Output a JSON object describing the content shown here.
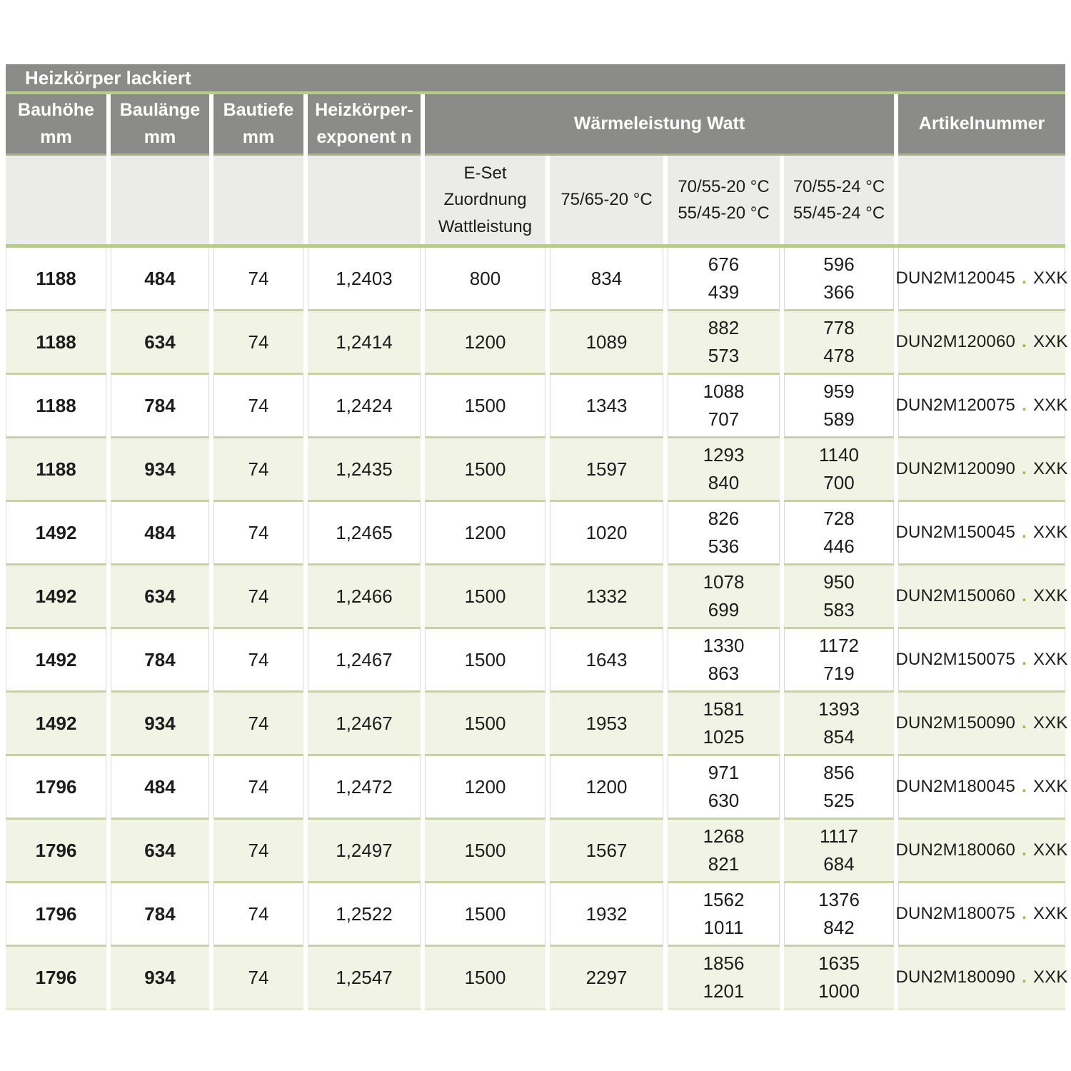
{
  "title": "Heizkörper lackiert",
  "header": {
    "bauhoehe": [
      "Bauhöhe",
      "mm"
    ],
    "baulaenge": [
      "Baulänge",
      "mm"
    ],
    "bautiefe": [
      "Bautiefe",
      "mm"
    ],
    "exponent": [
      "Heizkörper-",
      "exponent n"
    ],
    "waermeleistung": "Wärmeleistung Watt",
    "artikelnummer": "Artikelnummer"
  },
  "subheader": {
    "eset": [
      "E-Set",
      "Zuordnung",
      "Wattleistung"
    ],
    "t75_65": "75/65-20 °C",
    "t70_55_20": [
      "70/55-20 °C",
      "55/45-20 °C"
    ],
    "t70_55_24": [
      "70/55-24 °C",
      "55/45-24 °C"
    ]
  },
  "artikel_dot": ".",
  "artikel_suffix": "XXK",
  "colors": {
    "header_gray": "#8b8b89",
    "subheader_gray": "#ebebe9",
    "row_green": "#f1f4e4",
    "accent_green": "#b7cd8e",
    "separator_olive": "#c7d2a4",
    "artikel_dot_green": "#8ebf3e"
  },
  "rows": [
    {
      "bauhoehe": "1188",
      "baulaenge": "484",
      "bautiefe": "74",
      "exponent": "1,2403",
      "eset": "800",
      "w75_65": "834",
      "w70_55_20": [
        "676",
        "439"
      ],
      "w70_55_24": [
        "596",
        "366"
      ],
      "artikel": "DUN2M120045"
    },
    {
      "bauhoehe": "1188",
      "baulaenge": "634",
      "bautiefe": "74",
      "exponent": "1,2414",
      "eset": "1200",
      "w75_65": "1089",
      "w70_55_20": [
        "882",
        "573"
      ],
      "w70_55_24": [
        "778",
        "478"
      ],
      "artikel": "DUN2M120060"
    },
    {
      "bauhoehe": "1188",
      "baulaenge": "784",
      "bautiefe": "74",
      "exponent": "1,2424",
      "eset": "1500",
      "w75_65": "1343",
      "w70_55_20": [
        "1088",
        "707"
      ],
      "w70_55_24": [
        "959",
        "589"
      ],
      "artikel": "DUN2M120075"
    },
    {
      "bauhoehe": "1188",
      "baulaenge": "934",
      "bautiefe": "74",
      "exponent": "1,2435",
      "eset": "1500",
      "w75_65": "1597",
      "w70_55_20": [
        "1293",
        "840"
      ],
      "w70_55_24": [
        "1140",
        "700"
      ],
      "artikel": "DUN2M120090"
    },
    {
      "bauhoehe": "1492",
      "baulaenge": "484",
      "bautiefe": "74",
      "exponent": "1,2465",
      "eset": "1200",
      "w75_65": "1020",
      "w70_55_20": [
        "826",
        "536"
      ],
      "w70_55_24": [
        "728",
        "446"
      ],
      "artikel": "DUN2M150045"
    },
    {
      "bauhoehe": "1492",
      "baulaenge": "634",
      "bautiefe": "74",
      "exponent": "1,2466",
      "eset": "1500",
      "w75_65": "1332",
      "w70_55_20": [
        "1078",
        "699"
      ],
      "w70_55_24": [
        "950",
        "583"
      ],
      "artikel": "DUN2M150060"
    },
    {
      "bauhoehe": "1492",
      "baulaenge": "784",
      "bautiefe": "74",
      "exponent": "1,2467",
      "eset": "1500",
      "w75_65": "1643",
      "w70_55_20": [
        "1330",
        "863"
      ],
      "w70_55_24": [
        "1172",
        "719"
      ],
      "artikel": "DUN2M150075"
    },
    {
      "bauhoehe": "1492",
      "baulaenge": "934",
      "bautiefe": "74",
      "exponent": "1,2467",
      "eset": "1500",
      "w75_65": "1953",
      "w70_55_20": [
        "1581",
        "1025"
      ],
      "w70_55_24": [
        "1393",
        "854"
      ],
      "artikel": "DUN2M150090"
    },
    {
      "bauhoehe": "1796",
      "baulaenge": "484",
      "bautiefe": "74",
      "exponent": "1,2472",
      "eset": "1200",
      "w75_65": "1200",
      "w70_55_20": [
        "971",
        "630"
      ],
      "w70_55_24": [
        "856",
        "525"
      ],
      "artikel": "DUN2M180045"
    },
    {
      "bauhoehe": "1796",
      "baulaenge": "634",
      "bautiefe": "74",
      "exponent": "1,2497",
      "eset": "1500",
      "w75_65": "1567",
      "w70_55_20": [
        "1268",
        "821"
      ],
      "w70_55_24": [
        "1117",
        "684"
      ],
      "artikel": "DUN2M180060"
    },
    {
      "bauhoehe": "1796",
      "baulaenge": "784",
      "bautiefe": "74",
      "exponent": "1,2522",
      "eset": "1500",
      "w75_65": "1932",
      "w70_55_20": [
        "1562",
        "1011"
      ],
      "w70_55_24": [
        "1376",
        "842"
      ],
      "artikel": "DUN2M180075"
    },
    {
      "bauhoehe": "1796",
      "baulaenge": "934",
      "bautiefe": "74",
      "exponent": "1,2547",
      "eset": "1500",
      "w75_65": "2297",
      "w70_55_20": [
        "1856",
        "1201"
      ],
      "w70_55_24": [
        "1635",
        "1000"
      ],
      "artikel": "DUN2M180090"
    }
  ]
}
